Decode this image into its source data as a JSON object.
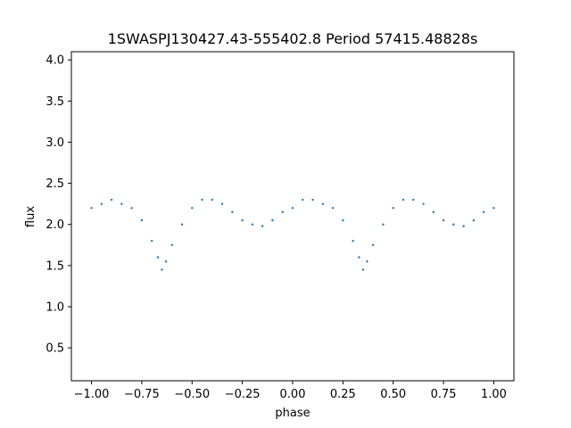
{
  "chart_data": {
    "type": "scatter",
    "title": "1SWASPJ130427.43-555402.8 Period 57415.48828s",
    "xlabel": "phase",
    "ylabel": "flux",
    "xlim": [
      -1.1,
      1.1
    ],
    "ylim": [
      0.1,
      4.1
    ],
    "xticks": [
      -1.0,
      -0.75,
      -0.5,
      -0.25,
      0.0,
      0.25,
      0.5,
      0.75,
      1.0
    ],
    "xtick_labels": [
      "−1.00",
      "−0.75",
      "−0.50",
      "−0.25",
      "0.00",
      "0.25",
      "0.50",
      "0.75",
      "1.00"
    ],
    "yticks": [
      0.5,
      1.0,
      1.5,
      2.0,
      2.5,
      3.0,
      3.5,
      4.0
    ],
    "ytick_labels": [
      "0.5",
      "1.0",
      "1.5",
      "2.0",
      "2.5",
      "3.0",
      "3.5",
      "4.0"
    ],
    "grid": false,
    "marker_color": "#1f77b4",
    "series": [
      {
        "x": [
          -1.0,
          -0.95,
          -0.9,
          -0.85,
          -0.8,
          -0.75,
          -0.7,
          -0.67,
          -0.65,
          -0.63,
          -0.6,
          -0.55,
          -0.5,
          -0.45,
          -0.4,
          -0.35,
          -0.3,
          -0.25,
          -0.2,
          -0.15,
          -0.1,
          -0.05,
          0.0,
          0.05,
          0.1,
          0.15,
          0.2,
          0.25,
          0.3,
          0.33,
          0.35,
          0.37,
          0.4,
          0.45,
          0.5,
          0.55,
          0.6,
          0.65,
          0.7,
          0.75,
          0.8,
          0.85,
          0.9,
          0.95,
          1.0
        ],
        "y": [
          2.2,
          2.25,
          2.3,
          2.25,
          2.2,
          2.05,
          1.8,
          1.6,
          1.45,
          1.55,
          1.75,
          2.0,
          2.2,
          2.3,
          2.3,
          2.25,
          2.15,
          2.05,
          2.0,
          1.98,
          2.05,
          2.15,
          2.2,
          2.3,
          2.3,
          2.25,
          2.2,
          2.05,
          1.8,
          1.6,
          1.45,
          1.55,
          1.75,
          2.0,
          2.2,
          2.3,
          2.3,
          2.25,
          2.15,
          2.05,
          2.0,
          1.98,
          2.05,
          2.15,
          2.2
        ]
      }
    ]
  }
}
